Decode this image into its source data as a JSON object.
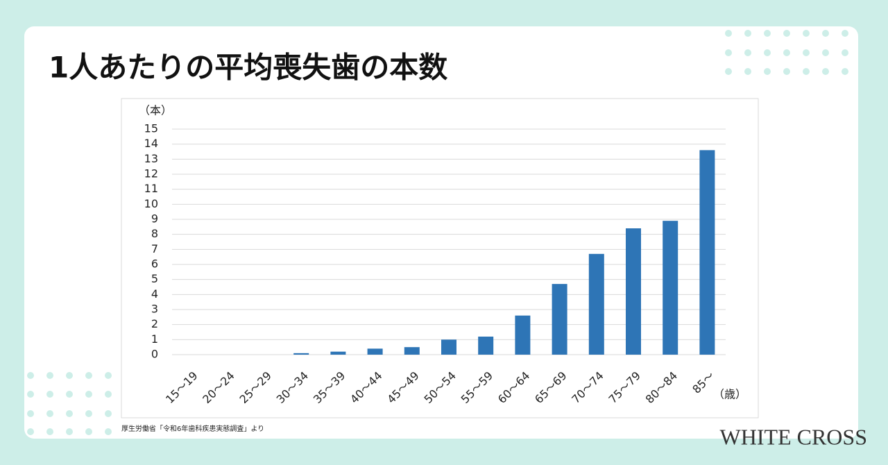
{
  "chart_data": {
    "type": "bar",
    "title": "1人あたりの平均喪失歯の本数",
    "y_label": "（本）",
    "x_label": "（歳）",
    "categories": [
      "15～19",
      "20～24",
      "25～29",
      "30～34",
      "35～39",
      "40～44",
      "45～49",
      "50～54",
      "55～59",
      "60～64",
      "65～69",
      "70～74",
      "75～79",
      "80～84",
      "85～"
    ],
    "values": [
      0,
      0,
      0,
      0.1,
      0.2,
      0.4,
      0.5,
      1.0,
      1.2,
      2.6,
      4.7,
      6.7,
      8.4,
      8.9,
      13.6
    ],
    "color": "#2e75b6",
    "ylim": [
      0,
      15
    ],
    "yticks": [
      0,
      1,
      2,
      3,
      4,
      5,
      6,
      7,
      8,
      9,
      10,
      11,
      12,
      13,
      14,
      15
    ],
    "grid": true
  },
  "source": "厚生労働省「令和6年歯科疾患実態調査」より",
  "brand": "WHITE CROSS"
}
